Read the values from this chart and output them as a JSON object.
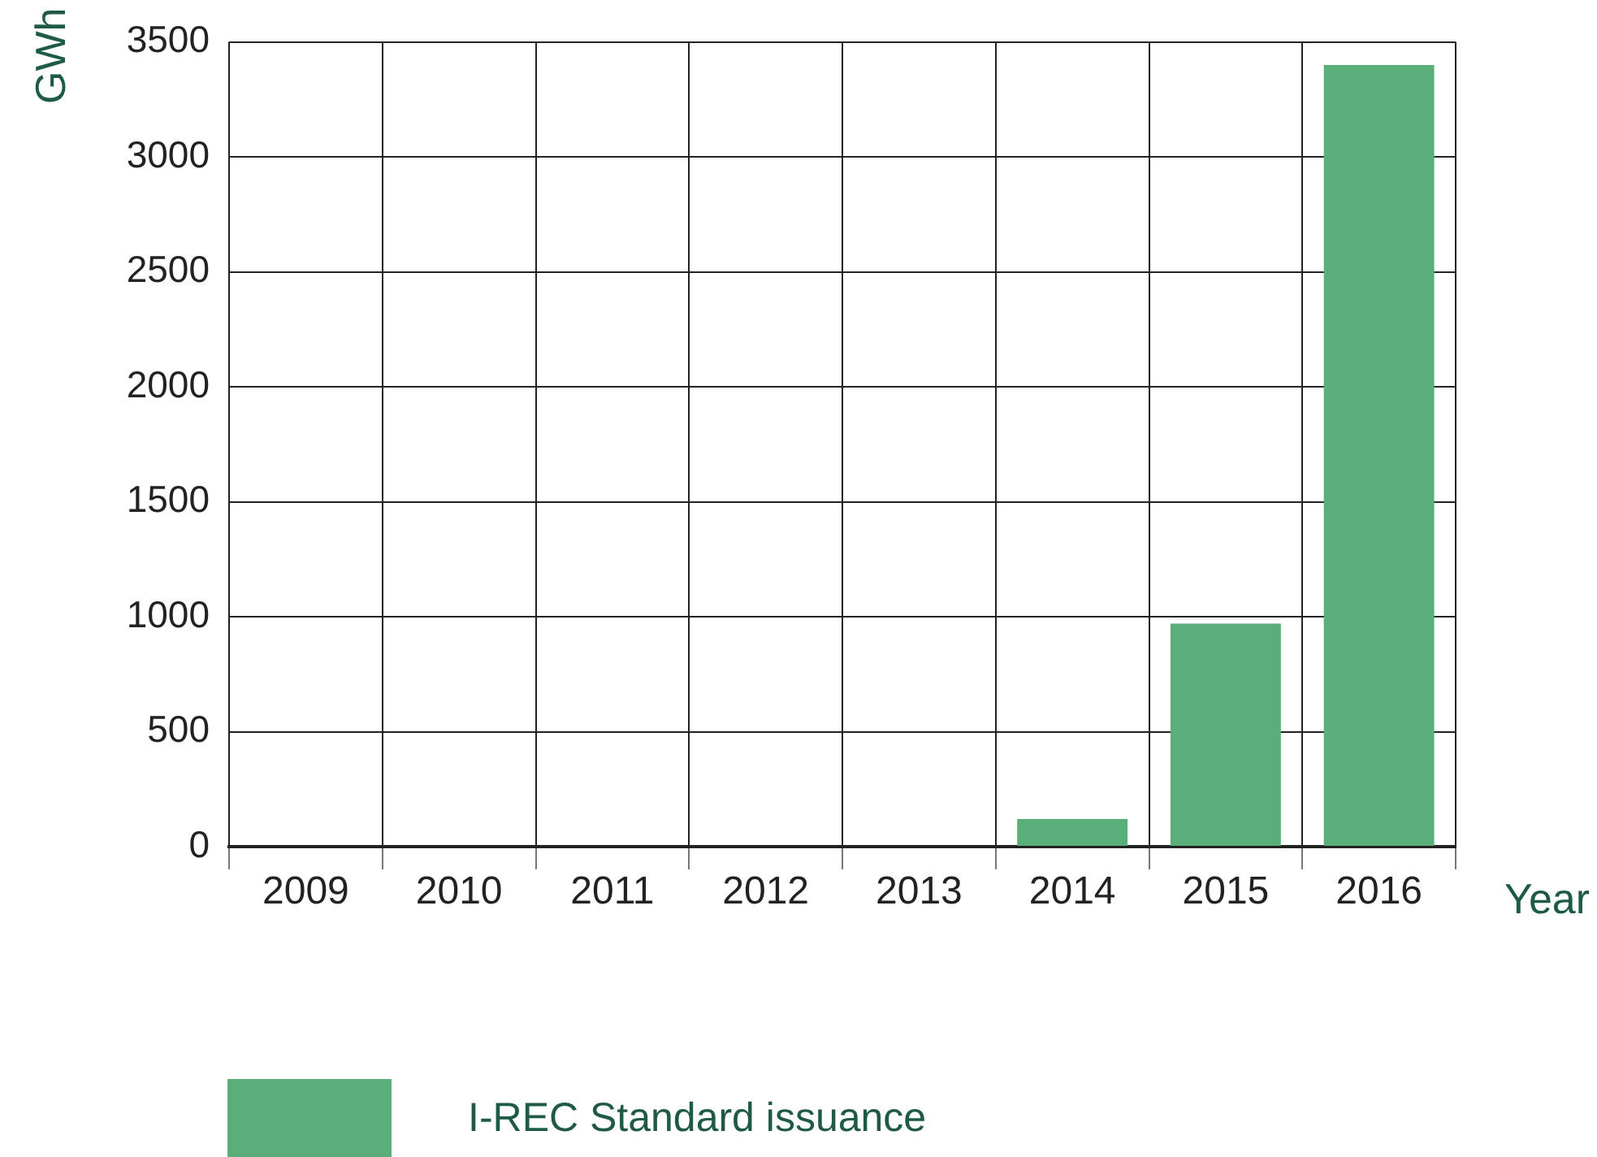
{
  "chart_data": {
    "type": "bar",
    "xlabel": "Year",
    "ylabel": "GWh",
    "categories": [
      "2009",
      "2010",
      "2011",
      "2012",
      "2013",
      "2014",
      "2015",
      "2016"
    ],
    "series": [
      {
        "name": "I-REC Standard issuance",
        "color": "#5aae7a",
        "values": [
          0,
          0,
          0,
          0,
          0,
          120,
          970,
          3400
        ]
      }
    ],
    "ylim": [
      0,
      3500
    ],
    "yticks": [
      0,
      500,
      1000,
      1500,
      2000,
      2500,
      3000,
      3500
    ],
    "grid": true,
    "legend": "bottom"
  }
}
